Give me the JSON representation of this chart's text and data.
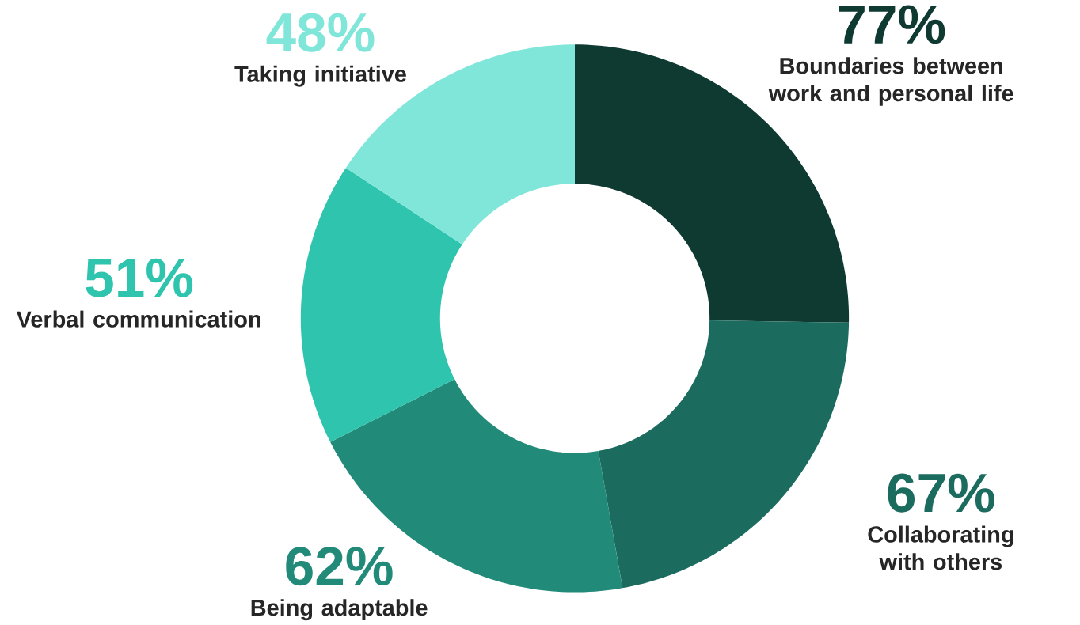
{
  "chart_data": {
    "type": "donut",
    "categories": [
      "Boundaries between work and personal life",
      "Collaborating with others",
      "Being adaptable",
      "Verbal communication",
      "Taking initiative"
    ],
    "values": [
      77,
      67,
      62,
      51,
      48
    ],
    "value_labels": [
      "77%",
      "67%",
      "62%",
      "51%",
      "48%"
    ],
    "colors": [
      "#0e3a32",
      "#1c6b5f",
      "#218a79",
      "#2ec4ad",
      "#80e6da"
    ]
  }
}
